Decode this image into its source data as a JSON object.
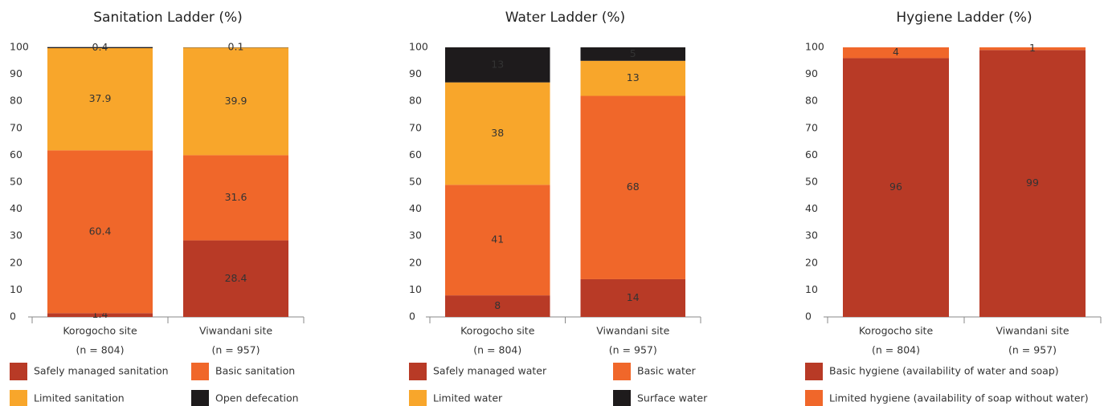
{
  "chart_data": [
    {
      "type": "bar",
      "stacked": true,
      "title": "Sanitation Ladder (%)",
      "categories": [
        "Korogocho site",
        "Viwandani site"
      ],
      "category_notes": [
        "(n = 804)",
        "(n = 957)"
      ],
      "series": [
        {
          "name": "Safely managed sanitation",
          "color": "#b83a26",
          "values": [
            1.4,
            28.4
          ]
        },
        {
          "name": "Basic sanitation",
          "color": "#f0672a",
          "values": [
            60.4,
            31.6
          ]
        },
        {
          "name": "Limited sanitation",
          "color": "#f8a62b",
          "values": [
            37.9,
            39.9
          ]
        },
        {
          "name": "Open defecation",
          "color": "#1e1b1c",
          "values": [
            0.4,
            0.1
          ]
        }
      ],
      "ylim": [
        0,
        100
      ],
      "yticks": [
        0,
        10,
        20,
        30,
        40,
        50,
        60,
        70,
        80,
        90,
        100
      ]
    },
    {
      "type": "bar",
      "stacked": true,
      "title": "Water Ladder (%)",
      "categories": [
        "Korogocho site",
        "Viwandani site"
      ],
      "category_notes": [
        "(n = 804)",
        "(n = 957)"
      ],
      "series": [
        {
          "name": "Safely managed water",
          "color": "#b83a26",
          "values": [
            8,
            14
          ]
        },
        {
          "name": "Basic water",
          "color": "#f0672a",
          "values": [
            41,
            68
          ]
        },
        {
          "name": "Limited water",
          "color": "#f8a62b",
          "values": [
            38,
            13
          ]
        },
        {
          "name": "Surface water",
          "color": "#1e1b1c",
          "values": [
            13,
            5
          ]
        }
      ],
      "ylim": [
        0,
        100
      ],
      "yticks": [
        0,
        10,
        20,
        30,
        40,
        50,
        60,
        70,
        80,
        90,
        100
      ]
    },
    {
      "type": "bar",
      "stacked": true,
      "title": "Hygiene Ladder (%)",
      "categories": [
        "Korogocho site",
        "Viwandani site"
      ],
      "category_notes": [
        "(n = 804)",
        "(n = 957)"
      ],
      "series": [
        {
          "name": "Basic hygiene (availability of water and soap)",
          "color": "#b83a26",
          "values": [
            96,
            99
          ]
        },
        {
          "name": "Limited hygiene (availability of soap without water)",
          "color": "#f0672a",
          "values": [
            4,
            1
          ]
        }
      ],
      "ylim": [
        0,
        100
      ],
      "yticks": [
        0,
        10,
        20,
        30,
        40,
        50,
        60,
        70,
        80,
        90,
        100
      ]
    }
  ]
}
